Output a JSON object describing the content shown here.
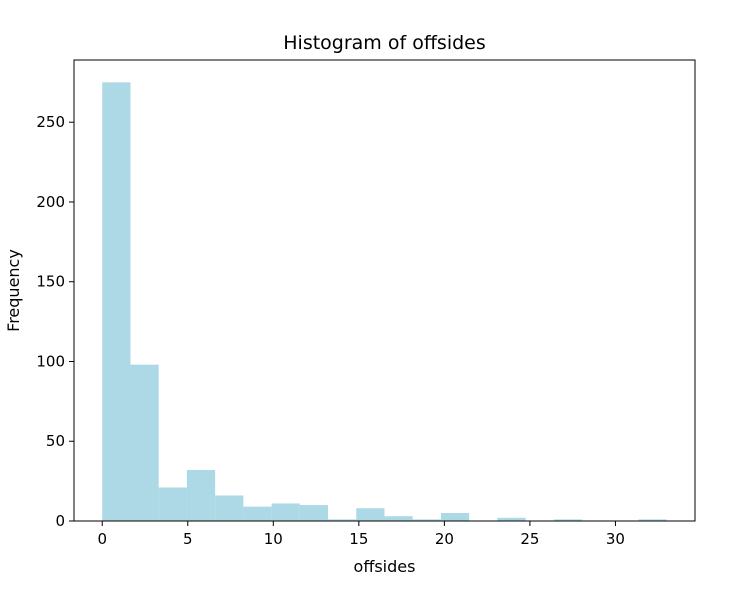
{
  "chart_data": {
    "type": "bar",
    "title": "Histogram of offsides",
    "xlabel": "offsides",
    "ylabel": "Frequency",
    "bar_color": "#add8e6",
    "xlim": [
      -1.65,
      34.65
    ],
    "ylim": [
      0,
      289
    ],
    "x_ticks": [
      0,
      5,
      10,
      15,
      20,
      25,
      30
    ],
    "y_ticks": [
      0,
      50,
      100,
      150,
      200,
      250
    ],
    "bins": [
      {
        "start": 0.0,
        "end": 1.65,
        "value": 275
      },
      {
        "start": 1.65,
        "end": 3.3,
        "value": 98
      },
      {
        "start": 3.3,
        "end": 4.95,
        "value": 21
      },
      {
        "start": 4.95,
        "end": 6.6,
        "value": 32
      },
      {
        "start": 6.6,
        "end": 8.25,
        "value": 16
      },
      {
        "start": 8.25,
        "end": 9.9,
        "value": 9
      },
      {
        "start": 9.9,
        "end": 11.55,
        "value": 11
      },
      {
        "start": 11.55,
        "end": 13.2,
        "value": 10
      },
      {
        "start": 13.2,
        "end": 14.85,
        "value": 1
      },
      {
        "start": 14.85,
        "end": 16.5,
        "value": 8
      },
      {
        "start": 16.5,
        "end": 18.15,
        "value": 3
      },
      {
        "start": 18.15,
        "end": 19.8,
        "value": 1
      },
      {
        "start": 19.8,
        "end": 21.45,
        "value": 5
      },
      {
        "start": 21.45,
        "end": 23.1,
        "value": 0
      },
      {
        "start": 23.1,
        "end": 24.75,
        "value": 2
      },
      {
        "start": 24.75,
        "end": 26.4,
        "value": 0
      },
      {
        "start": 26.4,
        "end": 28.05,
        "value": 1
      },
      {
        "start": 28.05,
        "end": 29.7,
        "value": 0
      },
      {
        "start": 29.7,
        "end": 31.35,
        "value": 0
      },
      {
        "start": 31.35,
        "end": 33.0,
        "value": 1
      }
    ]
  }
}
